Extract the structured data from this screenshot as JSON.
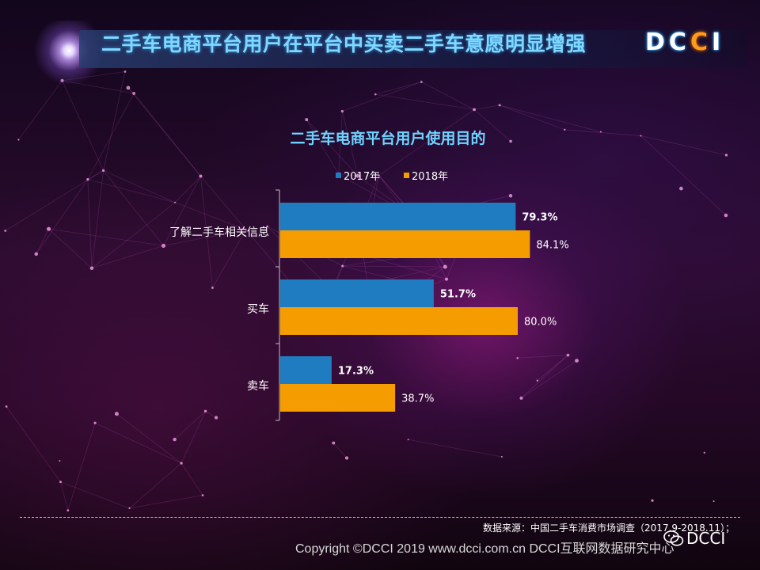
{
  "header": {
    "title": "二手车电商平台用户在平台中买卖二手车意愿明显增强",
    "logo": "DCCI"
  },
  "chart_data": {
    "type": "bar",
    "orientation": "horizontal",
    "title": "二手车电商平台用户使用目的",
    "categories": [
      "了解二手车相关信息",
      "买车",
      "卖车"
    ],
    "series": [
      {
        "name": "2017年",
        "values": [
          79.3,
          51.7,
          17.3
        ],
        "labels": [
          "79.3%",
          "51.7%",
          "17.3%"
        ],
        "color": "#1f7cc1"
      },
      {
        "name": "2018年",
        "values": [
          84.1,
          80.0,
          38.7
        ],
        "labels": [
          "84.1%",
          "80.0%",
          "38.7%"
        ],
        "color": "#f59c00"
      }
    ],
    "xlim": [
      0,
      100
    ],
    "legend": "top",
    "grid": false
  },
  "footer": {
    "source": "数据来源：中国二手车消费市场调查（2017.9-2018.11）；",
    "copyright": "Copyright ©DCCI 2019  www.dcci.com.cn   DCCI互联网数据研究中心",
    "wechat_label": "DCCI",
    "wechat_icon": "wechat-icon"
  }
}
